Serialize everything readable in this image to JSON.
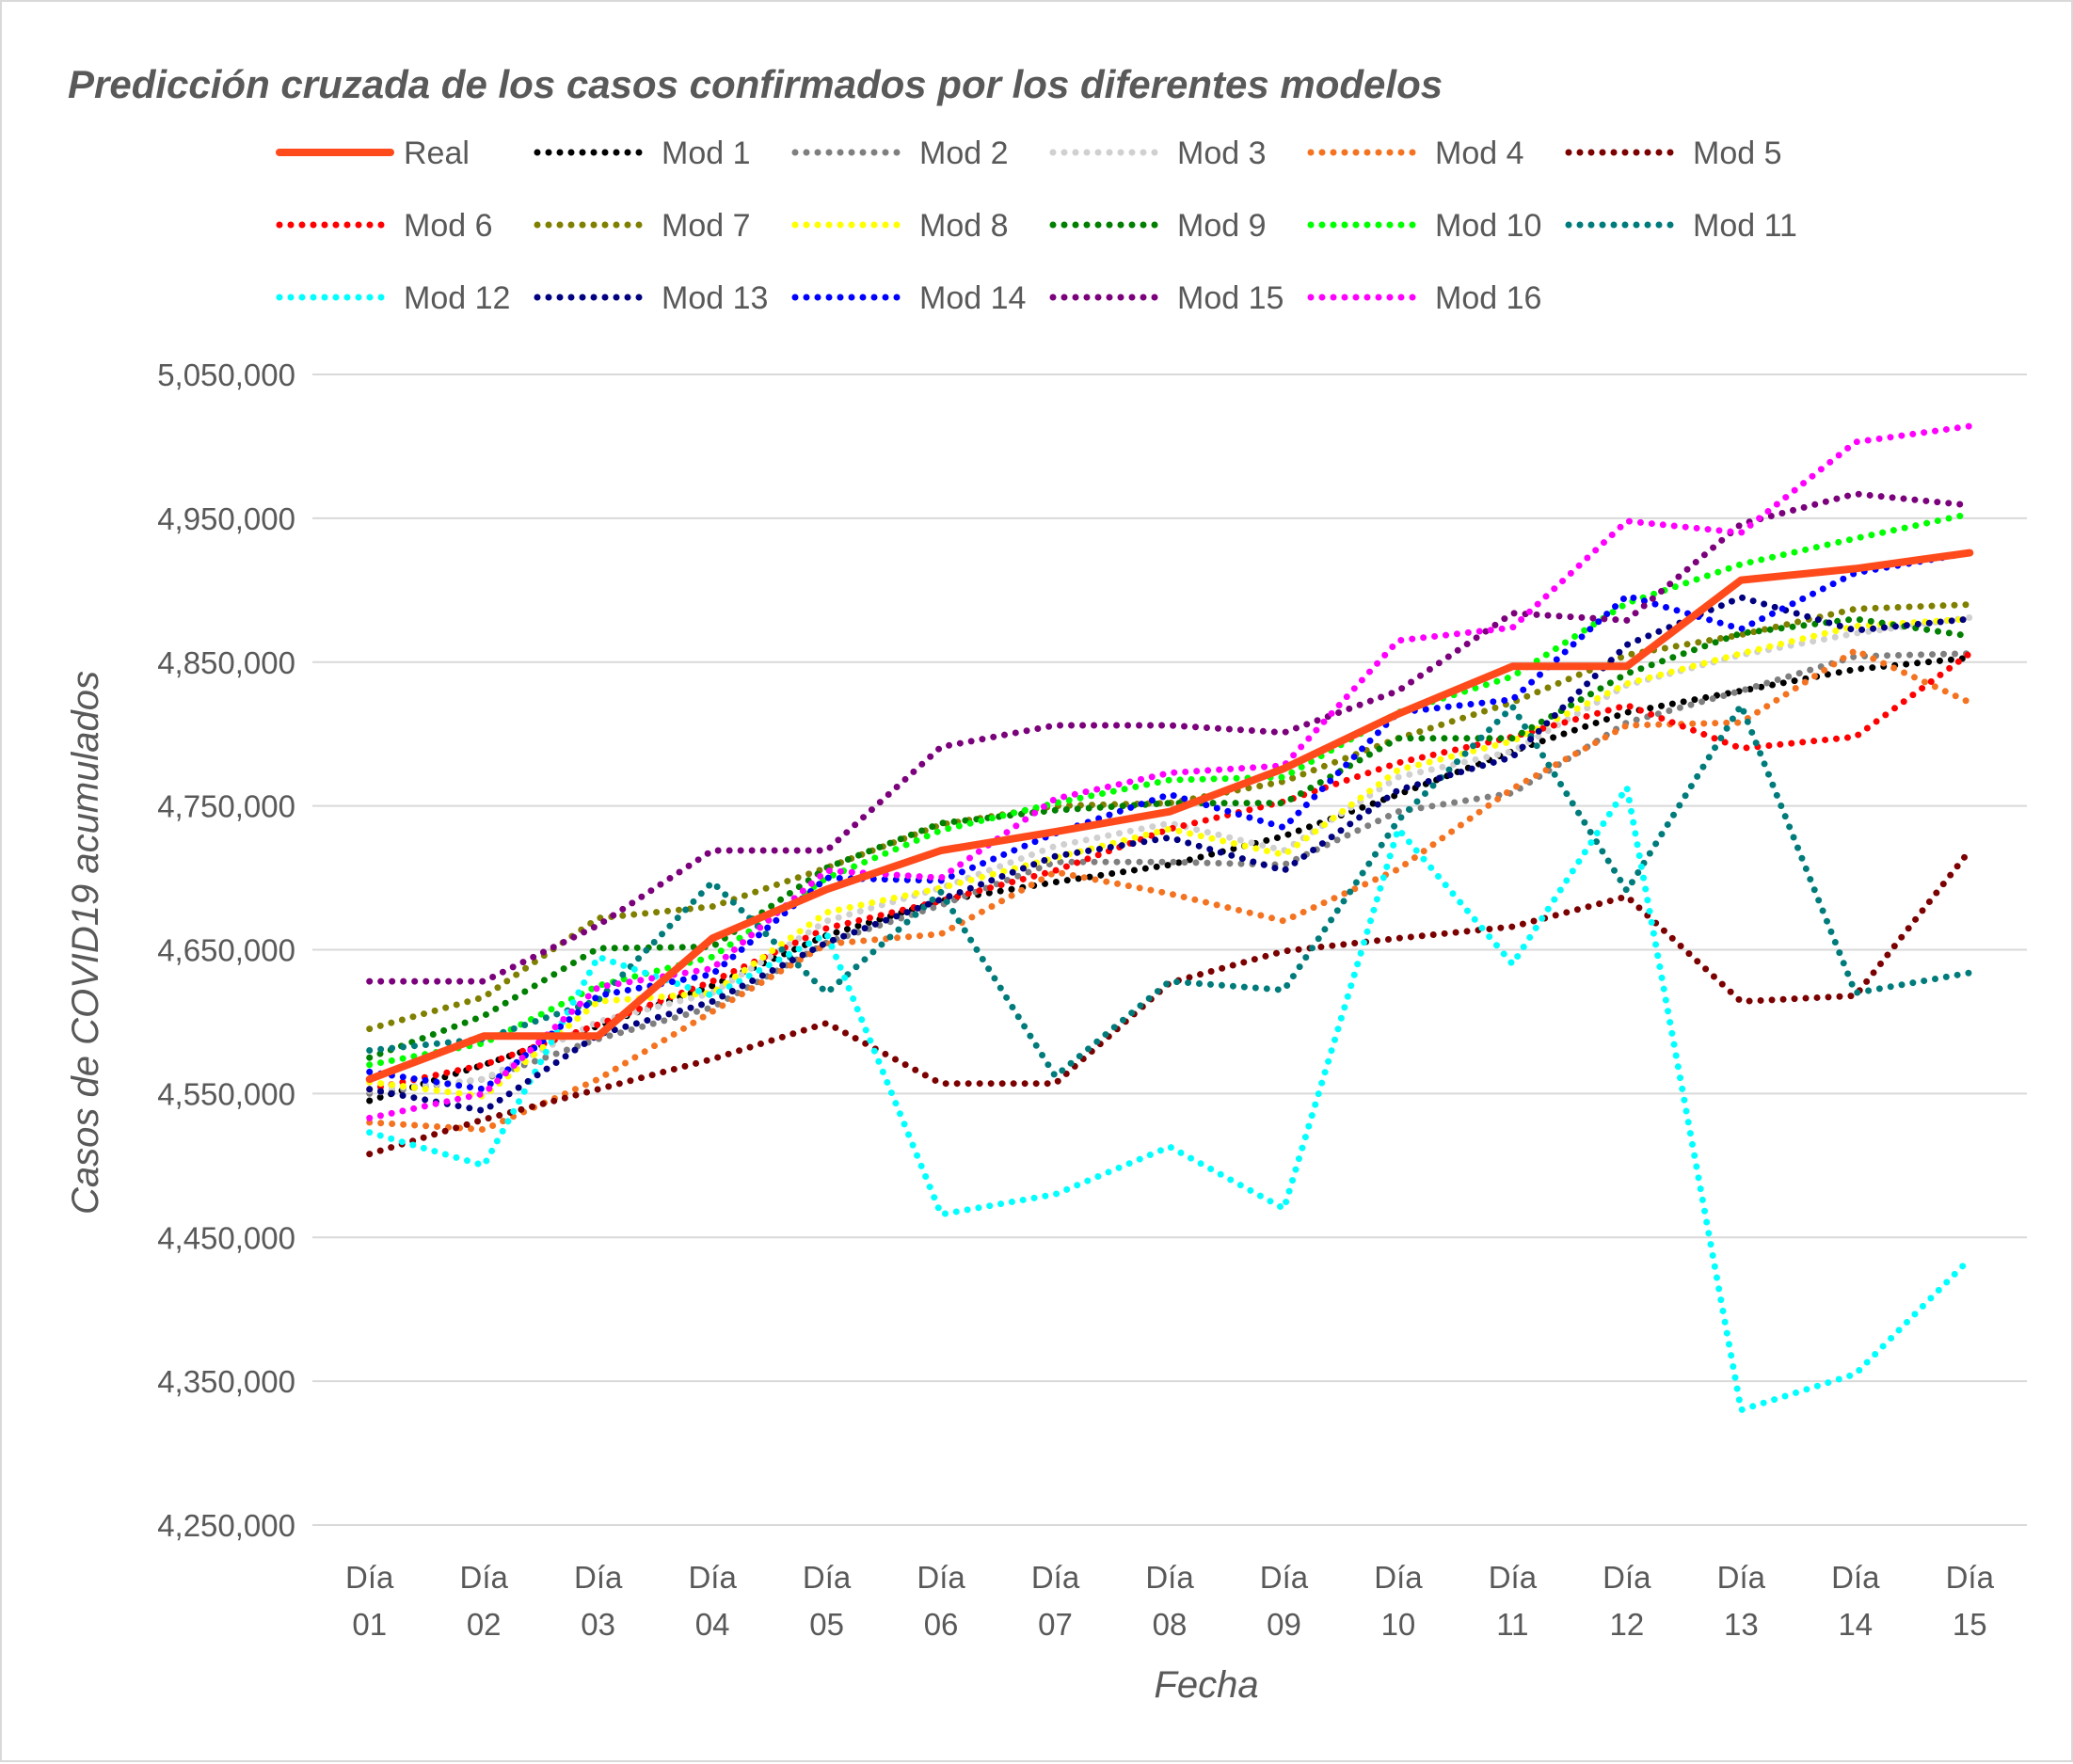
{
  "chart_data": {
    "type": "line",
    "title": "Predicción cruzada de los casos confirmados por los diferentes modelos",
    "xlabel": "Fecha",
    "ylabel": "Casos de COVID19 acumulados",
    "categories": [
      [
        "Día",
        "01"
      ],
      [
        "Día",
        "02"
      ],
      [
        "Día",
        "03"
      ],
      [
        "Día",
        "04"
      ],
      [
        "Día",
        "05"
      ],
      [
        "Día",
        "06"
      ],
      [
        "Día",
        "07"
      ],
      [
        "Día",
        "08"
      ],
      [
        "Día",
        "09"
      ],
      [
        "Día",
        "10"
      ],
      [
        "Día",
        "11"
      ],
      [
        "Día",
        "12"
      ],
      [
        "Día",
        "13"
      ],
      [
        "Día",
        "14"
      ],
      [
        "Día",
        "15"
      ]
    ],
    "ylim": [
      4250000,
      5050000
    ],
    "yticks": [
      4250000,
      4350000,
      4450000,
      4550000,
      4650000,
      4750000,
      4850000,
      4950000,
      5050000
    ],
    "ytick_labels": [
      "4,250,000",
      "4,350,000",
      "4,450,000",
      "4,550,000",
      "4,650,000",
      "4,750,000",
      "4,850,000",
      "4,950,000",
      "5,050,000"
    ],
    "grid": true,
    "legend_position": "top",
    "series": [
      {
        "name": "Real",
        "color": "#ff4a1c",
        "style": "solid",
        "values": [
          4560000,
          4590000,
          4590000,
          4658000,
          4692000,
          4719000,
          4732000,
          4746000,
          4776000,
          4814000,
          4847000,
          4847000,
          4907000,
          4915000,
          4926000
        ]
      },
      {
        "name": "Mod 1",
        "color": "#000000",
        "style": "dotted",
        "values": [
          4545000,
          4570000,
          4597000,
          4625000,
          4660000,
          4684000,
          4697000,
          4709000,
          4729000,
          4758000,
          4788000,
          4815000,
          4830000,
          4845000,
          4853000
        ]
      },
      {
        "name": "Mod 2",
        "color": "#7f7f7f",
        "style": "dotted",
        "values": [
          4550000,
          4560000,
          4588000,
          4610000,
          4655000,
          4681000,
          4711000,
          4711000,
          4709000,
          4746000,
          4759000,
          4808000,
          4830000,
          4854000,
          4856000
        ]
      },
      {
        "name": "Mod 3",
        "color": "#d0d0d0",
        "style": "dotted",
        "values": [
          4552000,
          4560000,
          4600000,
          4620000,
          4670000,
          4693000,
          4722000,
          4738000,
          4719000,
          4770000,
          4788000,
          4834000,
          4855000,
          4870000,
          4881000
        ]
      },
      {
        "name": "Mod 4",
        "color": "#f47321",
        "style": "dotted",
        "values": [
          4530000,
          4525000,
          4560000,
          4607000,
          4654000,
          4661000,
          4704000,
          4689000,
          4670000,
          4706000,
          4762000,
          4806000,
          4808000,
          4858000,
          4822000
        ]
      },
      {
        "name": "Mod 5",
        "color": "#7b0000",
        "style": "dotted",
        "values": [
          4508000,
          4532000,
          4553000,
          4574000,
          4599000,
          4557000,
          4557000,
          4627000,
          4649000,
          4658000,
          4666000,
          4687000,
          4614000,
          4618000,
          4719000
        ]
      },
      {
        "name": "Mod 6",
        "color": "#ff0000",
        "style": "dotted",
        "values": [
          4553000,
          4570000,
          4598000,
          4628000,
          4665000,
          4684000,
          4705000,
          4734000,
          4753000,
          4780000,
          4798000,
          4820000,
          4790000,
          4798000,
          4856000
        ]
      },
      {
        "name": "Mod 7",
        "color": "#7f7f00",
        "style": "dotted",
        "values": [
          4595000,
          4617000,
          4672000,
          4680000,
          4707000,
          4737000,
          4750000,
          4752000,
          4767000,
          4797000,
          4822000,
          4855000,
          4869000,
          4887000,
          4890000
        ]
      },
      {
        "name": "Mod 8",
        "color": "#ffff00",
        "style": "dotted",
        "values": [
          4558000,
          4548000,
          4614000,
          4620000,
          4676000,
          4693000,
          4714000,
          4734000,
          4716000,
          4775000,
          4795000,
          4835000,
          4856000,
          4875000,
          4880000
        ]
      },
      {
        "name": "Mod 9",
        "color": "#007f00",
        "style": "dotted",
        "values": [
          4575000,
          4604000,
          4651000,
          4652000,
          4707000,
          4738000,
          4747000,
          4752000,
          4752000,
          4797000,
          4797000,
          4842000,
          4870000,
          4880000,
          4868000
        ]
      },
      {
        "name": "Mod 10",
        "color": "#00ff00",
        "style": "dotted",
        "values": [
          4570000,
          4585000,
          4625000,
          4645000,
          4700000,
          4733000,
          4752000,
          4768000,
          4770000,
          4815000,
          4840000,
          4891000,
          4918000,
          4936000,
          4953000
        ]
      },
      {
        "name": "Mod 11",
        "color": "#007b7b",
        "style": "dotted",
        "values": [
          4580000,
          4588000,
          4615000,
          4697000,
          4620000,
          4690000,
          4562000,
          4628000,
          4622000,
          4740000,
          4819000,
          4691000,
          4820000,
          4620000,
          4634000
        ]
      },
      {
        "name": "Mod 12",
        "color": "#00ffff",
        "style": "dotted",
        "values": [
          4523000,
          4500000,
          4645000,
          4618000,
          4661000,
          4466000,
          4480000,
          4513000,
          4470000,
          4734000,
          4640000,
          4763000,
          4330000,
          4355000,
          4435000
        ]
      },
      {
        "name": "Mod 13",
        "color": "#000080",
        "style": "dotted",
        "values": [
          4553000,
          4538000,
          4591000,
          4614000,
          4655000,
          4685000,
          4715000,
          4728000,
          4705000,
          4761000,
          4784000,
          4862000,
          4895000,
          4872000,
          4880000
        ]
      },
      {
        "name": "Mod 14",
        "color": "#0000ff",
        "style": "dotted",
        "values": [
          4565000,
          4553000,
          4618000,
          4633000,
          4700000,
          4698000,
          4731000,
          4758000,
          4735000,
          4815000,
          4824000,
          4896000,
          4873000,
          4912000,
          4926000
        ]
      },
      {
        "name": "Mod 15",
        "color": "#7b007b",
        "style": "dotted",
        "values": [
          4628000,
          4628000,
          4667000,
          4719000,
          4719000,
          4791000,
          4806000,
          4806000,
          4801000,
          4830000,
          4884000,
          4879000,
          4946000,
          4967000,
          4959000
        ]
      },
      {
        "name": "Mod 16",
        "color": "#ff00ff",
        "style": "dotted",
        "values": [
          4533000,
          4550000,
          4624000,
          4637000,
          4705000,
          4700000,
          4755000,
          4773000,
          4778000,
          4865000,
          4874000,
          4948000,
          4940000,
          5003000,
          5014000
        ]
      }
    ]
  }
}
